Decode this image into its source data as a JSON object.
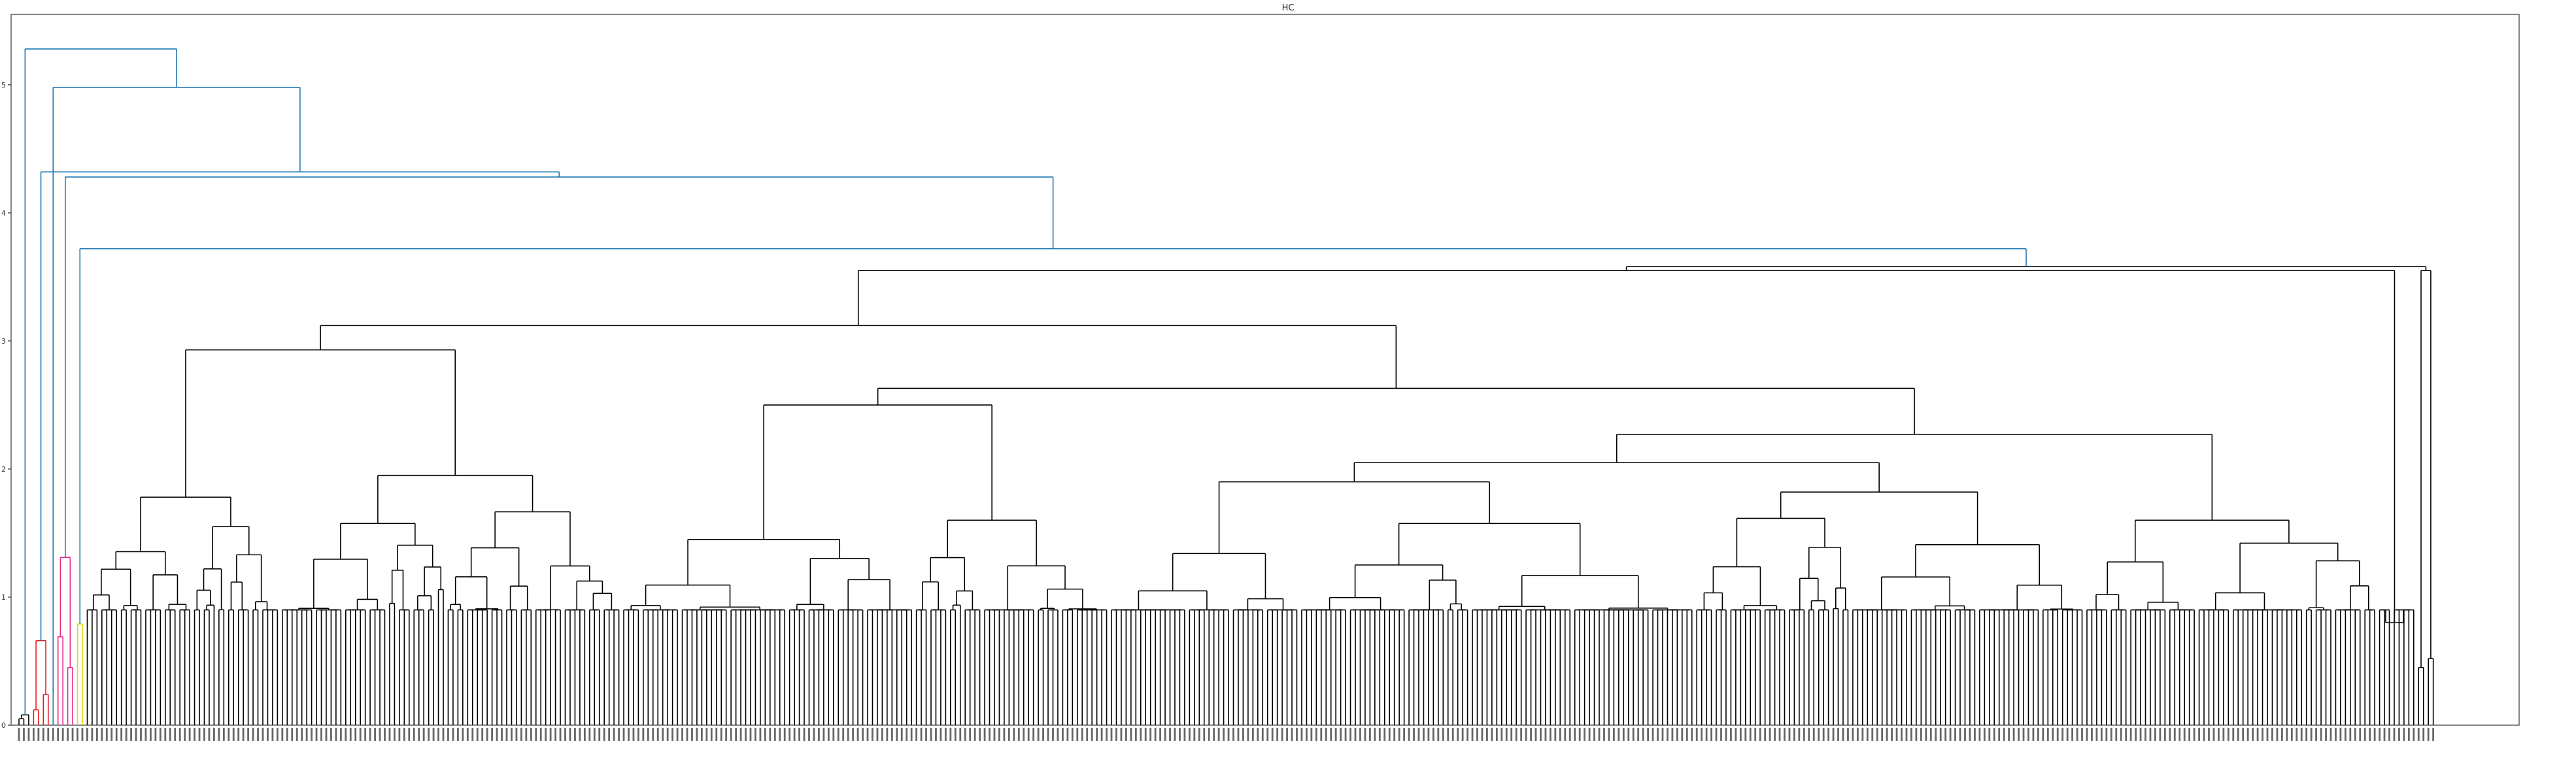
{
  "chart_data": {
    "type": "dendrogram",
    "title": "HC",
    "xlabel": "",
    "ylabel": "",
    "ylim": [
      0,
      5.55
    ],
    "yticks": [
      0,
      1,
      2,
      3,
      4,
      5
    ],
    "grid": false,
    "leaf_count": 512,
    "leaf_labels_legible": false,
    "colors": {
      "red_cluster": "#e41a1c",
      "magenta_cluster": "#e7298a",
      "yellow_cluster": "#e6d800",
      "upper_links": "#1f77b4",
      "default_links": "#000000"
    },
    "top_merges": [
      {
        "height": 5.28,
        "color": "#1f77b4"
      },
      {
        "height": 4.98,
        "color": "#1f77b4"
      },
      {
        "height": 4.32,
        "color": "#1f77b4"
      },
      {
        "height": 4.28,
        "color": "#1f77b4"
      },
      {
        "height": 3.72,
        "color": "#1f77b4"
      },
      {
        "height": 3.65,
        "color": "#000000"
      },
      {
        "height": 3.58,
        "color": "#000000"
      }
    ],
    "colored_clusters": [
      {
        "color": "#e41a1c",
        "merge_height": 0.66,
        "sub_merges": [
          0.24
        ]
      },
      {
        "color": "#e7298a",
        "merge_height": 1.31,
        "sub_merges": [
          0.69,
          0.45
        ]
      },
      {
        "color": "#e6d800",
        "merge_height": 0.79,
        "sub_merges": []
      }
    ],
    "major_subtree_heights": [
      3.55,
      3.37,
      3.12,
      2.93,
      2.75,
      2.63,
      2.5,
      2.37,
      2.27,
      2.05,
      1.9,
      1.73,
      1.5,
      1.31,
      1.1
    ]
  }
}
